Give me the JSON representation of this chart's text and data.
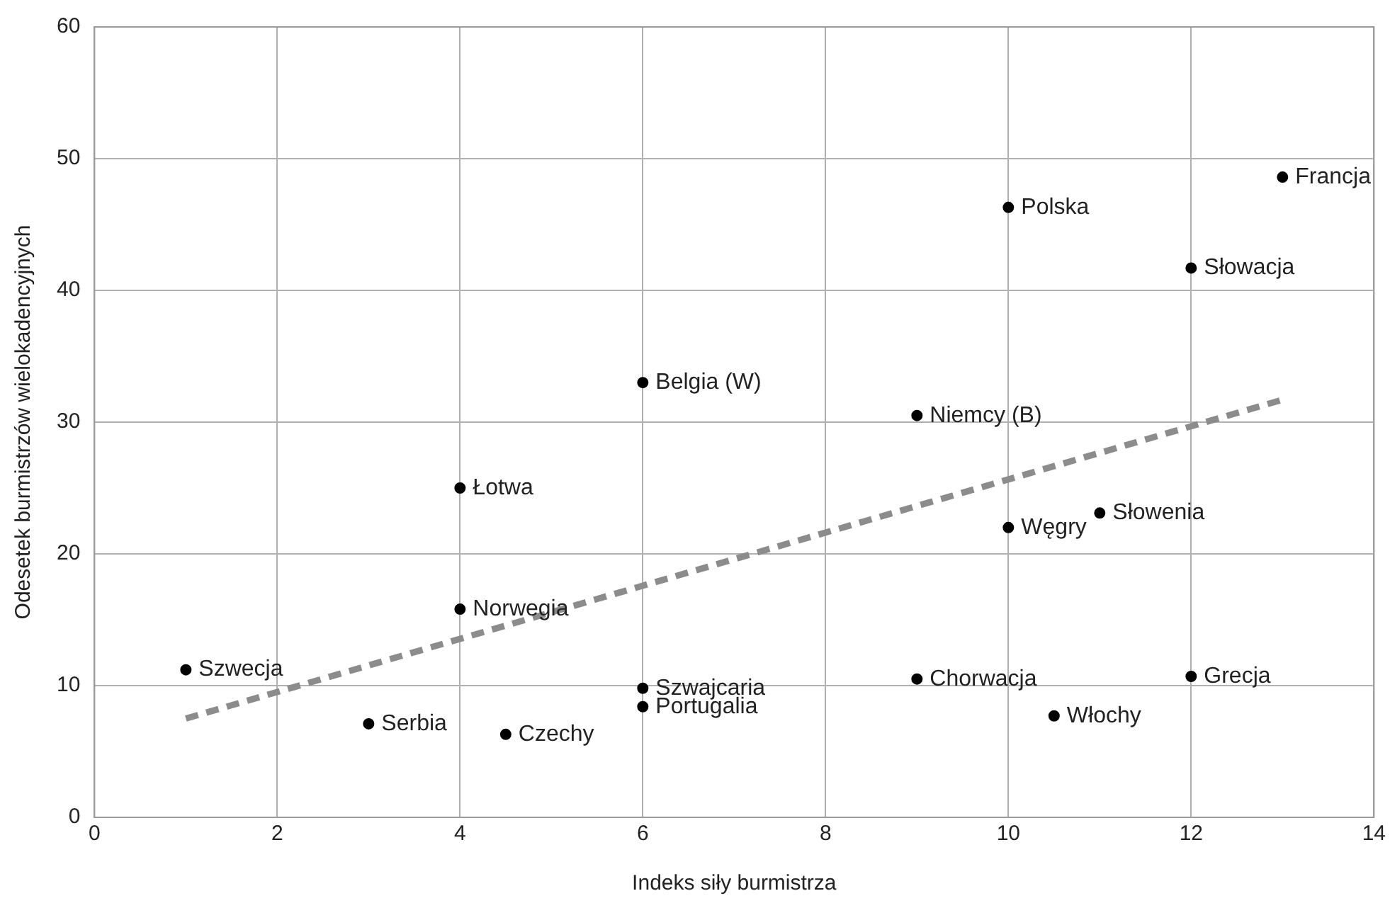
{
  "chart_data": {
    "type": "scatter",
    "xlabel": "Indeks siły burmistrza",
    "ylabel": "Odesetek burmistrzów wielokadencyjnych",
    "xlim": [
      0,
      14
    ],
    "xticks": [
      0,
      2,
      4,
      6,
      8,
      10,
      12,
      14
    ],
    "ylim": [
      0,
      60
    ],
    "yticks": [
      0,
      10,
      20,
      30,
      40,
      50,
      60
    ],
    "grid": true,
    "marker": "circle",
    "series": [
      {
        "color": "#000000",
        "x": [
          1,
          3,
          4.5,
          4,
          4,
          6,
          6,
          6,
          9,
          9,
          10,
          10,
          10.5,
          11,
          12,
          12,
          13
        ],
        "values": [
          11.2,
          7.1,
          6.3,
          15.8,
          25,
          33,
          9.8,
          8.4,
          30.5,
          10.5,
          46.3,
          22,
          7.7,
          23.1,
          41.7,
          10.7,
          48.6
        ]
      },
      {
        "type": "line",
        "color": "#8c8c8c",
        "line_style": "dashed",
        "marker": "none",
        "x": [
          1,
          13
        ],
        "values": [
          7.5,
          31.7
        ]
      }
    ],
    "annotations": [
      {
        "text": "Szwecja",
        "x": 1,
        "y": 11.2
      },
      {
        "text": "Serbia",
        "x": 3,
        "y": 7.1
      },
      {
        "text": "Czechy",
        "x": 4.5,
        "y": 6.3
      },
      {
        "text": "Norwegia",
        "x": 4,
        "y": 15.8
      },
      {
        "text": "Łotwa",
        "x": 4,
        "y": 25
      },
      {
        "text": "Belgia (W)",
        "x": 6,
        "y": 33
      },
      {
        "text": "Szwajcaria",
        "x": 6,
        "y": 9.8
      },
      {
        "text": "Portugalia",
        "x": 6,
        "y": 8.4
      },
      {
        "text": "Niemcy (B)",
        "x": 9,
        "y": 30.5
      },
      {
        "text": "Chorwacja",
        "x": 9,
        "y": 10.5
      },
      {
        "text": "Polska",
        "x": 10,
        "y": 46.3
      },
      {
        "text": "Węgry",
        "x": 10,
        "y": 22
      },
      {
        "text": "Włochy",
        "x": 10.5,
        "y": 7.7
      },
      {
        "text": "Słowenia",
        "x": 11,
        "y": 23.1
      },
      {
        "text": "Słowacja",
        "x": 12,
        "y": 41.7
      },
      {
        "text": "Grecja",
        "x": 12,
        "y": 10.7
      },
      {
        "text": "Francja",
        "x": 13,
        "y": 48.6
      }
    ]
  }
}
